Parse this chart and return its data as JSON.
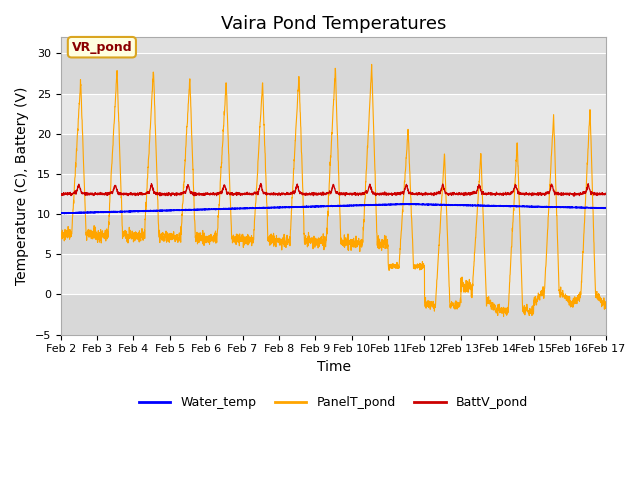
{
  "title": "Vaira Pond Temperatures",
  "ylabel": "Temperature (C), Battery (V)",
  "xlabel": "Time",
  "annotation": "VR_pond",
  "ylim": [
    -5,
    32
  ],
  "yticks": [
    -5,
    0,
    5,
    10,
    15,
    20,
    25,
    30
  ],
  "xtick_labels": [
    "Feb 2",
    "Feb 3",
    "Feb 4",
    "Feb 5",
    "Feb 6",
    "Feb 7",
    "Feb 8",
    "Feb 9",
    "Feb 10",
    "Feb 11",
    "Feb 12",
    "Feb 13",
    "Feb 14",
    "Feb 15",
    "Feb 16",
    "Feb 17"
  ],
  "bg_color": "#e0e0e0",
  "band_colors": [
    "#d8d8d8",
    "#e8e8e8"
  ],
  "grid_color": "#ffffff",
  "water_color": "#0000ff",
  "panel_color": "#ffa500",
  "batt_color": "#cc0000",
  "legend_labels": [
    "Water_temp",
    "PanelT_pond",
    "BattV_pond"
  ],
  "title_fontsize": 13,
  "axis_fontsize": 10,
  "tick_fontsize": 8,
  "annot_fontsize": 9
}
